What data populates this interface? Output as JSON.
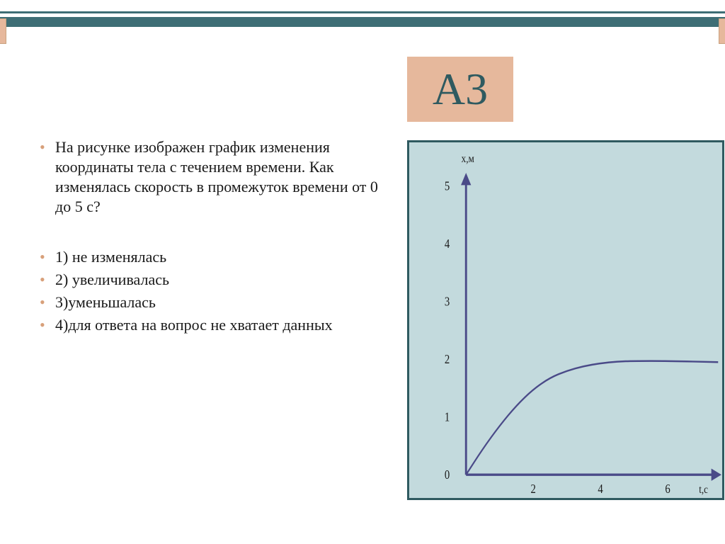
{
  "badge": {
    "label": "А3"
  },
  "question": {
    "text": "На рисунке изображен график изменения координаты тела с течением времени. Как изменялась скорость в промежуток времени от 0 до 5 с?"
  },
  "options": [
    "1)  не изменялась",
    "2) увеличивалась",
    "3)уменьшалась",
    "4)для ответа на вопрос не хватает данных"
  ],
  "chart": {
    "type": "line",
    "background_color": "#c3dadd",
    "frame_color": "#2f5a60",
    "axis_color": "#4a4a88",
    "curve_color": "#4a4a88",
    "x_label": "t,с",
    "y_label": "х,м",
    "y_ticks": [
      0,
      1,
      2,
      3,
      4,
      5
    ],
    "x_ticks": [
      2,
      4,
      6
    ],
    "curve_points": [
      [
        0.0,
        0.0
      ],
      [
        0.5,
        0.45
      ],
      [
        1.0,
        0.85
      ],
      [
        1.5,
        1.2
      ],
      [
        2.0,
        1.48
      ],
      [
        2.5,
        1.68
      ],
      [
        3.0,
        1.8
      ],
      [
        3.5,
        1.88
      ],
      [
        4.0,
        1.93
      ],
      [
        4.5,
        1.96
      ],
      [
        5.0,
        1.97
      ],
      [
        6.0,
        1.97
      ],
      [
        7.5,
        1.95
      ]
    ],
    "axis_width": 3.5,
    "curve_width": 2.5,
    "label_fontsize": 16,
    "tick_fontsize": 18,
    "y_range": [
      0,
      5
    ],
    "x_range": [
      0,
      7.5
    ],
    "geom": {
      "origin_x": 98,
      "origin_y": 472,
      "x_scale": 58,
      "y_scale": 82,
      "y_axis_top": 52,
      "x_axis_right": 530
    }
  },
  "colors": {
    "band": "#3e6e75",
    "badge_bg": "#e6b89c",
    "badge_text": "#2f5a60",
    "bullet": "#d8a07a",
    "text": "#1a1a1a"
  }
}
